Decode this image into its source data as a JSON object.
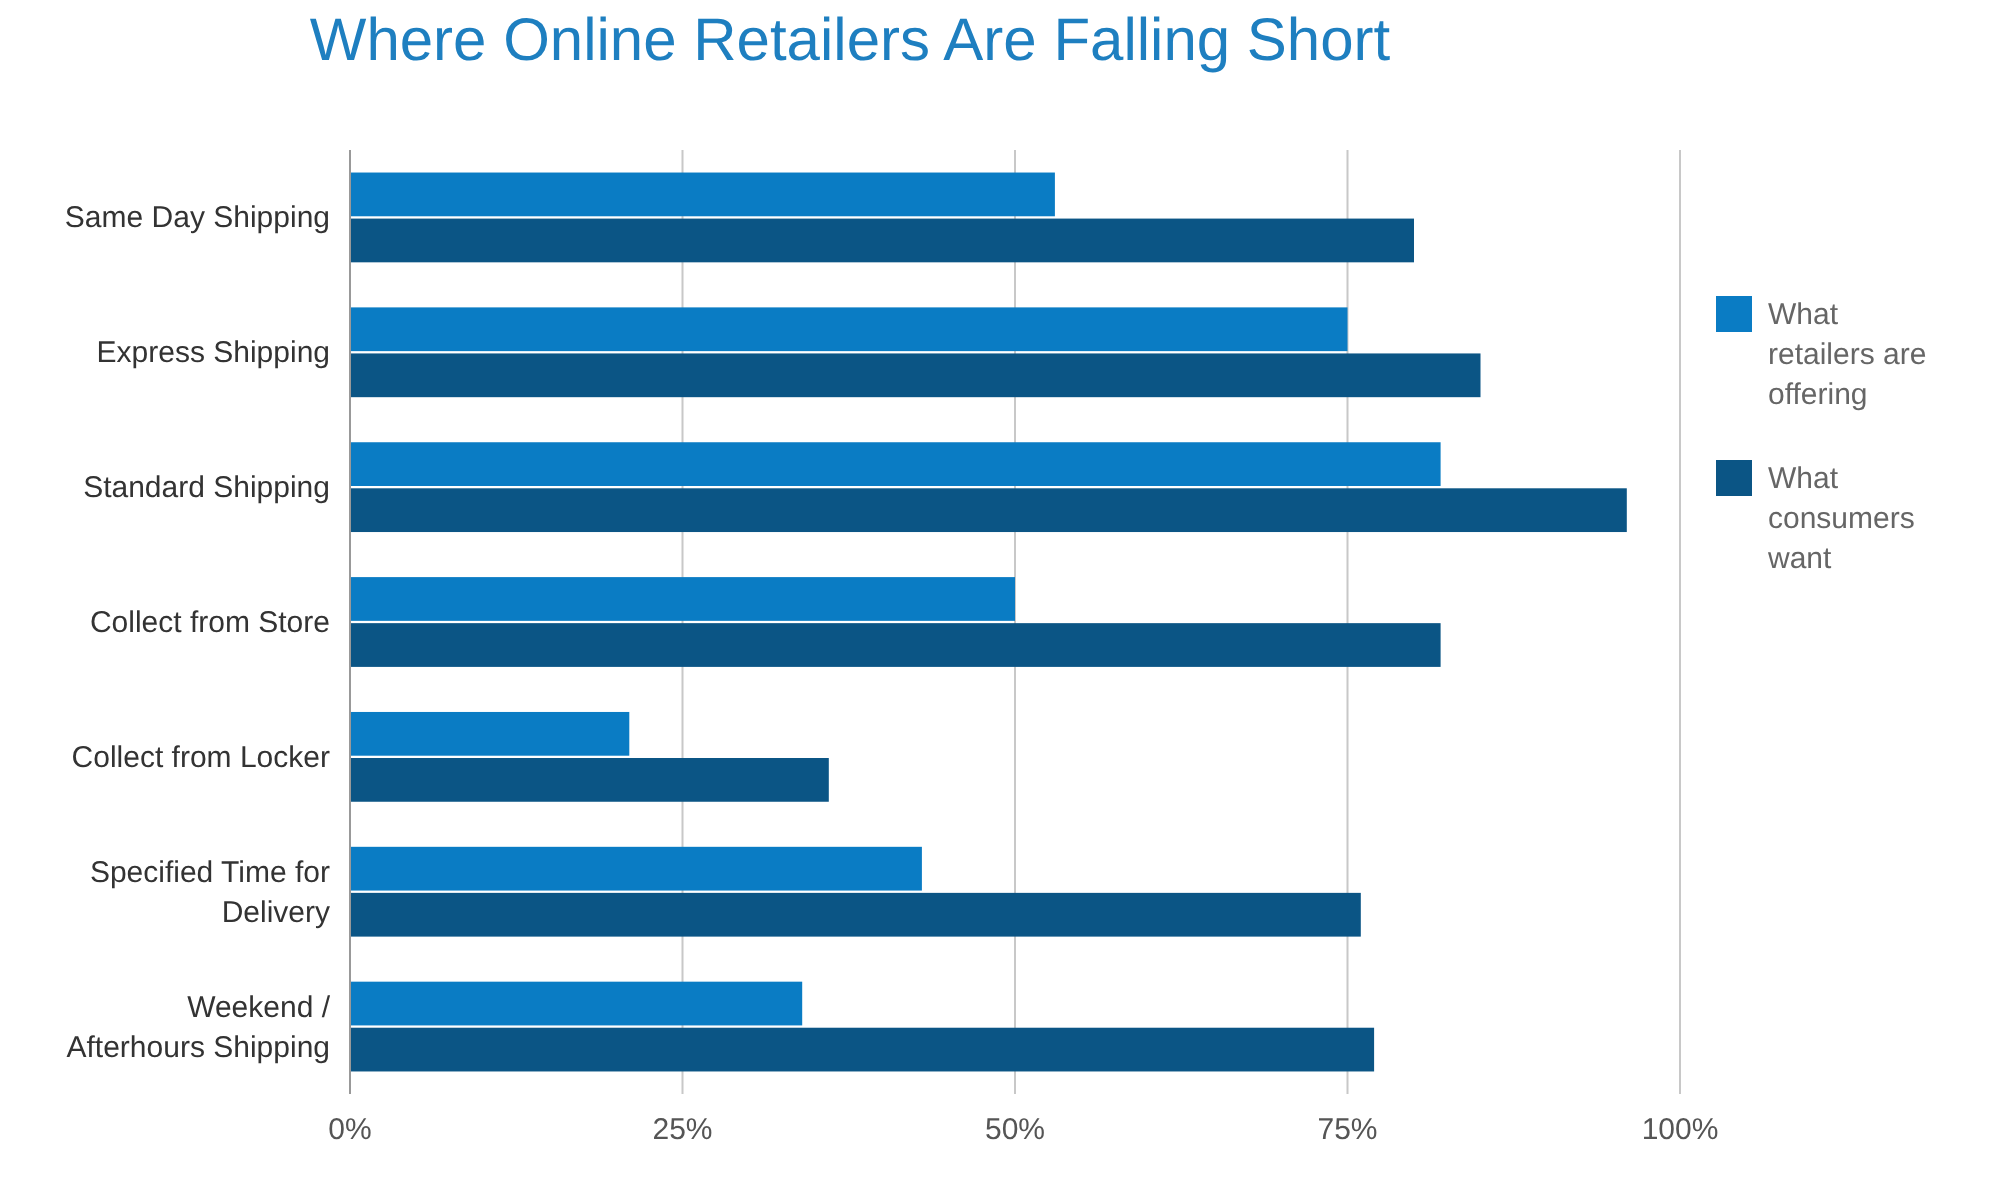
{
  "chart_data": {
    "type": "bar",
    "orientation": "horizontal",
    "title": "Where Online Retailers Are Falling Short",
    "categories": [
      "Same Day Shipping",
      "Express Shipping",
      "Standard Shipping",
      "Collect from Store",
      "Collect from Locker",
      "Specified Time for Delivery",
      "Weekend / Afterhours Shipping"
    ],
    "series": [
      {
        "name": "What retailers are offering",
        "color": "#0a7cc4",
        "values": [
          53,
          75,
          82,
          50,
          21,
          43,
          34
        ]
      },
      {
        "name": "What consumers want",
        "color": "#0b5585",
        "values": [
          80,
          85,
          96,
          82,
          36,
          76,
          77
        ]
      }
    ],
    "xlim": [
      0,
      100
    ],
    "xticks": [
      {
        "value": 0,
        "label": "0%"
      },
      {
        "value": 25,
        "label": "25%"
      },
      {
        "value": 50,
        "label": "50%"
      },
      {
        "value": 75,
        "label": "75%"
      },
      {
        "value": 100,
        "label": "100%"
      }
    ],
    "grid": "x",
    "legend": "right"
  }
}
